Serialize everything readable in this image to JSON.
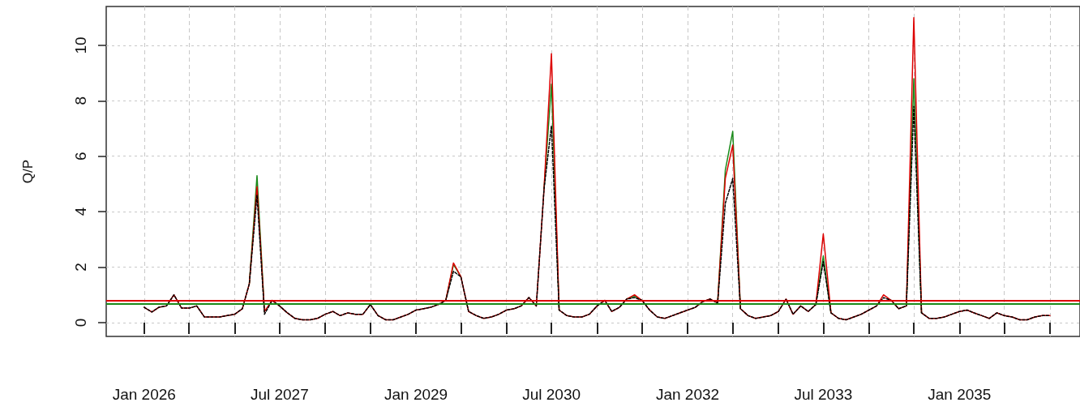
{
  "chart_data": {
    "type": "line",
    "ylabel": "Q/P",
    "marker": "none",
    "grid": true,
    "x": [
      "2026-01",
      "2026-02",
      "2026-03",
      "2026-04",
      "2026-05",
      "2026-06",
      "2026-07",
      "2026-08",
      "2026-09",
      "2026-10",
      "2026-11",
      "2026-12",
      "2027-01",
      "2027-02",
      "2027-03",
      "2027-04",
      "2027-05",
      "2027-06",
      "2027-07",
      "2027-08",
      "2027-09",
      "2027-10",
      "2027-11",
      "2027-12",
      "2028-01",
      "2028-02",
      "2028-03",
      "2028-04",
      "2028-05",
      "2028-06",
      "2028-07",
      "2028-08",
      "2028-09",
      "2028-10",
      "2028-11",
      "2028-12",
      "2029-01",
      "2029-02",
      "2029-03",
      "2029-04",
      "2029-05",
      "2029-06",
      "2029-07",
      "2029-08",
      "2029-09",
      "2029-10",
      "2029-11",
      "2029-12",
      "2030-01",
      "2030-02",
      "2030-03",
      "2030-04",
      "2030-05",
      "2030-06",
      "2030-07",
      "2030-08",
      "2030-09",
      "2030-10",
      "2030-11",
      "2030-12",
      "2031-01",
      "2031-02",
      "2031-03",
      "2031-04",
      "2031-05",
      "2031-06",
      "2031-07",
      "2031-08",
      "2031-09",
      "2031-10",
      "2031-11",
      "2031-12",
      "2032-01",
      "2032-02",
      "2032-03",
      "2032-04",
      "2032-05",
      "2032-06",
      "2032-07",
      "2032-08",
      "2032-09",
      "2032-10",
      "2032-11",
      "2032-12",
      "2033-01",
      "2033-02",
      "2033-03",
      "2033-04",
      "2033-05",
      "2033-06",
      "2033-07",
      "2033-08",
      "2033-09",
      "2033-10",
      "2033-11",
      "2033-12",
      "2034-01",
      "2034-02",
      "2034-03",
      "2034-04",
      "2034-05",
      "2034-06",
      "2034-07",
      "2034-08",
      "2034-09",
      "2034-10",
      "2034-11",
      "2034-12",
      "2035-01",
      "2035-02",
      "2035-03",
      "2035-04",
      "2035-05",
      "2035-06",
      "2035-07",
      "2035-08",
      "2035-09",
      "2035-10",
      "2035-11",
      "2035-12",
      "2036-01"
    ],
    "series": [
      {
        "color": "#1a8a1a",
        "values": [
          null,
          null,
          null,
          null,
          null,
          null,
          null,
          null,
          null,
          null,
          null,
          null,
          null,
          null,
          1.4,
          5.3,
          0.4,
          null,
          null,
          null,
          null,
          null,
          null,
          null,
          null,
          null,
          null,
          null,
          null,
          null,
          null,
          null,
          null,
          null,
          null,
          null,
          null,
          null,
          null,
          null,
          0.8,
          2.1,
          1.65,
          null,
          null,
          null,
          null,
          null,
          null,
          null,
          null,
          null,
          null,
          4.8,
          8.6,
          0.45,
          null,
          null,
          null,
          null,
          null,
          null,
          null,
          null,
          0.85,
          0.95,
          0.8,
          null,
          null,
          null,
          null,
          null,
          null,
          null,
          null,
          null,
          0.7,
          5.5,
          6.9,
          0.5,
          null,
          null,
          null,
          null,
          null,
          null,
          null,
          null,
          null,
          0.65,
          2.4,
          0.35,
          null,
          null,
          null,
          null,
          null,
          null,
          null,
          null,
          null,
          0.6,
          8.8,
          0.35,
          null,
          null,
          null,
          null,
          null,
          null,
          null,
          null,
          null,
          null,
          null,
          null,
          null,
          null,
          null,
          null,
          null
        ]
      },
      {
        "color": "#dd0000",
        "values": [
          0.55,
          0.38,
          0.55,
          0.6,
          1.0,
          0.52,
          0.52,
          0.6,
          0.2,
          0.2,
          0.2,
          0.25,
          0.3,
          0.5,
          1.4,
          4.9,
          0.4,
          0.8,
          0.6,
          0.35,
          0.15,
          0.1,
          0.1,
          0.15,
          0.3,
          0.4,
          0.25,
          0.35,
          0.3,
          0.3,
          0.65,
          0.25,
          0.1,
          0.1,
          0.2,
          0.3,
          0.45,
          0.5,
          0.55,
          0.65,
          0.8,
          2.15,
          1.65,
          0.4,
          0.25,
          0.15,
          0.2,
          0.3,
          0.45,
          0.5,
          0.6,
          0.9,
          0.6,
          4.8,
          9.7,
          0.45,
          0.25,
          0.2,
          0.2,
          0.3,
          0.6,
          0.8,
          0.4,
          0.55,
          0.85,
          1.0,
          0.8,
          0.45,
          0.2,
          0.15,
          0.25,
          0.35,
          0.45,
          0.55,
          0.75,
          0.85,
          0.7,
          5.2,
          6.4,
          0.5,
          0.25,
          0.15,
          0.2,
          0.25,
          0.4,
          0.85,
          0.3,
          0.6,
          0.4,
          0.65,
          3.2,
          0.35,
          0.15,
          0.1,
          0.2,
          0.3,
          0.45,
          0.6,
          1.0,
          0.8,
          0.5,
          0.6,
          11.0,
          0.35,
          0.15,
          0.15,
          0.2,
          0.3,
          0.4,
          0.45,
          0.35,
          0.25,
          0.15,
          0.35,
          0.25,
          0.2,
          0.1,
          0.1,
          0.2,
          0.25,
          0.25
        ]
      },
      {
        "color": "#000000",
        "line_style": "dashed",
        "values": [
          0.55,
          0.38,
          0.55,
          0.6,
          1.0,
          0.52,
          0.52,
          0.6,
          0.2,
          0.2,
          0.2,
          0.25,
          0.3,
          0.5,
          1.4,
          4.6,
          0.3,
          0.8,
          0.6,
          0.35,
          0.15,
          0.1,
          0.1,
          0.15,
          0.3,
          0.4,
          0.25,
          0.35,
          0.3,
          0.3,
          0.65,
          0.25,
          0.1,
          0.1,
          0.2,
          0.3,
          0.45,
          0.5,
          0.55,
          0.65,
          0.8,
          1.85,
          1.65,
          0.4,
          0.25,
          0.15,
          0.2,
          0.3,
          0.45,
          0.5,
          0.6,
          0.9,
          0.6,
          4.8,
          7.1,
          0.45,
          0.25,
          0.2,
          0.2,
          0.3,
          0.6,
          0.8,
          0.4,
          0.55,
          0.85,
          0.9,
          0.8,
          0.45,
          0.2,
          0.15,
          0.25,
          0.35,
          0.45,
          0.55,
          0.75,
          0.85,
          0.7,
          4.3,
          5.2,
          0.5,
          0.25,
          0.15,
          0.2,
          0.25,
          0.4,
          0.85,
          0.3,
          0.6,
          0.4,
          0.65,
          2.2,
          0.35,
          0.15,
          0.1,
          0.2,
          0.3,
          0.45,
          0.6,
          0.9,
          0.8,
          0.5,
          0.6,
          7.8,
          0.35,
          0.15,
          0.15,
          0.2,
          0.3,
          0.4,
          0.45,
          0.35,
          0.25,
          0.15,
          0.35,
          0.25,
          0.2,
          0.1,
          0.1,
          0.2,
          0.25,
          0.25
        ]
      }
    ],
    "ref_lines": [
      {
        "axis": "y",
        "value": 0.8,
        "color": "#dd0000"
      },
      {
        "axis": "y",
        "value": 0.67,
        "color": "#1a8a1a"
      }
    ],
    "xlim": [
      "2025-08",
      "2036-05"
    ],
    "xticks": [
      {
        "value": "2026-01",
        "label": "Jan 2026"
      },
      {
        "value": "2026-07",
        "label": null
      },
      {
        "value": "2027-01",
        "label": null
      },
      {
        "value": "2027-07",
        "label": "Jul 2027"
      },
      {
        "value": "2028-01",
        "label": null
      },
      {
        "value": "2028-07",
        "label": null
      },
      {
        "value": "2029-01",
        "label": "Jan 2029"
      },
      {
        "value": "2029-07",
        "label": null
      },
      {
        "value": "2030-01",
        "label": null
      },
      {
        "value": "2030-07",
        "label": "Jul 2030"
      },
      {
        "value": "2031-01",
        "label": null
      },
      {
        "value": "2031-07",
        "label": null
      },
      {
        "value": "2032-01",
        "label": "Jan 2032"
      },
      {
        "value": "2032-07",
        "label": null
      },
      {
        "value": "2033-01",
        "label": null
      },
      {
        "value": "2033-07",
        "label": "Jul 2033"
      },
      {
        "value": "2034-01",
        "label": null
      },
      {
        "value": "2034-07",
        "label": null
      },
      {
        "value": "2035-01",
        "label": "Jan 2035"
      },
      {
        "value": "2035-07",
        "label": null
      },
      {
        "value": "2036-01",
        "label": null
      }
    ],
    "ylim": [
      -0.5,
      11.4
    ],
    "yticks": [
      0,
      2,
      4,
      6,
      8,
      10
    ]
  }
}
